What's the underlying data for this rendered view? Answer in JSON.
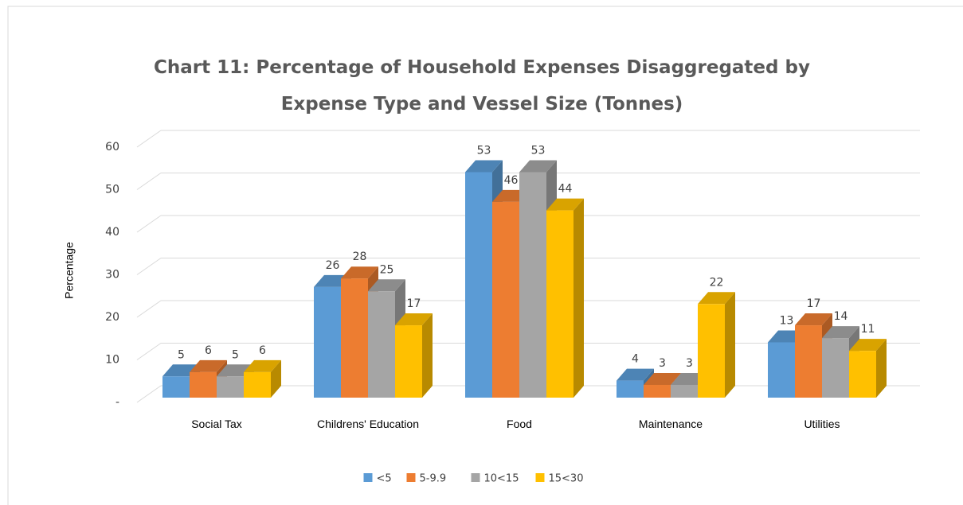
{
  "chart_data": {
    "type": "bar3d",
    "title": "Chart 11: Percentage of Household Expenses Disaggregated by Expense Type and Vessel Size (Tonnes)",
    "y_label": "Percentage",
    "categories": [
      "Social Tax",
      "Childrens' Education",
      "Food",
      "Maintenance",
      "Utilities"
    ],
    "series": [
      {
        "name": "<5",
        "color": "#5b9bd5",
        "values": [
          5,
          26,
          53,
          4,
          13
        ]
      },
      {
        "name": "5-9.9",
        "color": "#ed7d31",
        "values": [
          6,
          28,
          46,
          3,
          17
        ]
      },
      {
        "name": "10<15",
        "color": "#a5a5a5",
        "values": [
          5,
          25,
          53,
          3,
          14
        ]
      },
      {
        "name": "15<30",
        "color": "#ffc000",
        "values": [
          6,
          17,
          44,
          22,
          11
        ]
      }
    ],
    "ylim": [
      0,
      60
    ],
    "yticks": [
      {
        "value": 0,
        "label": "-"
      },
      10,
      20,
      30,
      40,
      50,
      60
    ],
    "grid": true,
    "legend": "bottom"
  }
}
